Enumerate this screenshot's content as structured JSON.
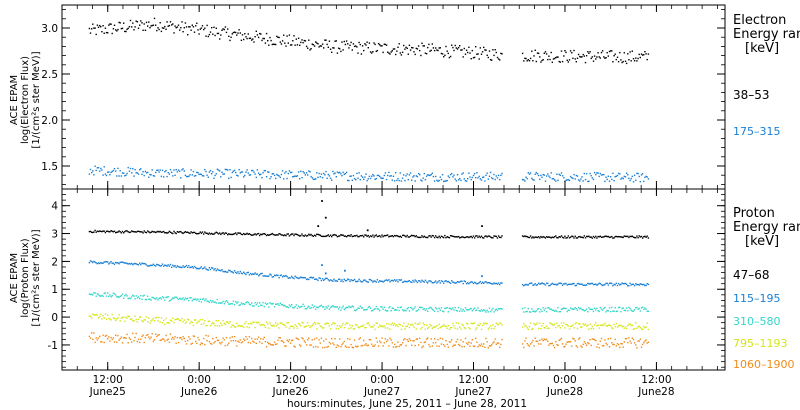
{
  "colors": {
    "black": "#000000",
    "blue": "#1a7fd4",
    "cyan": "#33d6c8",
    "yellow": "#d4e61a",
    "orange": "#f08c1a",
    "frame": "#000000"
  },
  "chart_data": [
    {
      "type": "scatter",
      "panel": "electron",
      "ylabel": [
        "ACE EPAM",
        "log(Electron Flux)",
        "[1/(cm²s ster MeV)]"
      ],
      "ylim": [
        1.25,
        3.25
      ],
      "yticks": [
        1.5,
        2.0,
        2.5,
        3.0
      ],
      "ytick_labels": [
        "1.5",
        "2.0",
        "2.5",
        "3.0"
      ],
      "legend": {
        "title": [
          "Electron",
          "Energy ranges",
          "[keV]"
        ],
        "entries": [
          {
            "label": "38–53",
            "color": "black"
          },
          {
            "label": "175–315",
            "color": "blue"
          }
        ]
      },
      "series": [
        {
          "name": "38–53",
          "color": "black",
          "t": [
            4,
            12,
            24,
            36,
            48,
            57,
            60,
            66,
            76
          ],
          "v": [
            2.98,
            3.05,
            2.92,
            2.8,
            2.77,
            2.72,
            2.71,
            2.7,
            2.69
          ],
          "spread": 0.07
        },
        {
          "name": "175–315",
          "color": "blue",
          "t": [
            4,
            12,
            24,
            36,
            48,
            57,
            60,
            66,
            76
          ],
          "v": [
            1.46,
            1.43,
            1.42,
            1.4,
            1.39,
            1.39,
            1.39,
            1.39,
            1.38
          ],
          "spread": 0.05
        }
      ]
    },
    {
      "type": "scatter",
      "panel": "proton",
      "ylabel": [
        "ACE EPAM",
        "log(Proton Flux)",
        "[1/(cm²s ster MeV)]"
      ],
      "ylim": [
        -1.9,
        4.6
      ],
      "yticks": [
        -1,
        0,
        1,
        2,
        3,
        4
      ],
      "ytick_labels": [
        "-1",
        "0",
        "1",
        "2",
        "3",
        "4"
      ],
      "legend": {
        "title": [
          "Proton",
          "Energy ranges",
          "[keV]"
        ],
        "entries": [
          {
            "label": "47–68",
            "color": "black"
          },
          {
            "label": "115–195",
            "color": "blue"
          },
          {
            "label": "310–580",
            "color": "cyan"
          },
          {
            "label": "795–1193",
            "color": "yellow"
          },
          {
            "label": "1060–1900",
            "color": "orange"
          }
        ]
      },
      "series": [
        {
          "name": "47–68",
          "color": "black",
          "t": [
            4,
            12,
            18,
            24,
            36,
            48,
            57,
            60,
            76
          ],
          "v": [
            3.1,
            3.08,
            3.05,
            3.0,
            2.95,
            2.92,
            2.9,
            2.9,
            2.9
          ],
          "spread": 0.04,
          "spikes": [
            [
              34,
              4.2
            ],
            [
              34.5,
              3.6
            ],
            [
              33.5,
              3.3
            ],
            [
              40,
              3.15
            ],
            [
              55,
              3.3
            ]
          ]
        },
        {
          "name": "115–195",
          "color": "blue",
          "t": [
            4,
            12,
            18,
            24,
            30,
            36,
            48,
            57,
            60,
            76
          ],
          "v": [
            2.0,
            1.9,
            1.8,
            1.6,
            1.45,
            1.35,
            1.3,
            1.25,
            1.2,
            1.2
          ],
          "spread": 0.05,
          "spikes": [
            [
              34,
              1.9
            ],
            [
              34.5,
              1.6
            ],
            [
              37,
              1.7
            ],
            [
              55,
              1.5
            ]
          ]
        },
        {
          "name": "310–580",
          "color": "cyan",
          "t": [
            4,
            12,
            18,
            24,
            36,
            48,
            57,
            60,
            76
          ],
          "v": [
            0.85,
            0.7,
            0.65,
            0.5,
            0.35,
            0.3,
            0.28,
            0.28,
            0.3
          ],
          "spread": 0.08
        },
        {
          "name": "795–1193",
          "color": "yellow",
          "t": [
            4,
            12,
            24,
            36,
            48,
            57,
            60,
            76
          ],
          "v": [
            0.05,
            -0.1,
            -0.25,
            -0.3,
            -0.3,
            -0.3,
            -0.3,
            -0.3
          ],
          "spread": 0.12
        },
        {
          "name": "1060–1900",
          "color": "orange",
          "t": [
            4,
            12,
            24,
            36,
            48,
            57,
            60,
            76
          ],
          "v": [
            -0.7,
            -0.75,
            -0.85,
            -0.9,
            -0.9,
            -0.9,
            -0.9,
            -0.9
          ],
          "spread": 0.18
        }
      ]
    }
  ],
  "x_axis": {
    "xlim_hours": [
      0,
      87
    ],
    "data_start": 3.5,
    "data_end": 77,
    "gap": [
      57.7,
      60.2
    ],
    "major_ticks": [
      {
        "t": 6,
        "time": "12:00",
        "date": "June25"
      },
      {
        "t": 18,
        "time": "0:00",
        "date": "June26"
      },
      {
        "t": 30,
        "time": "12:00",
        "date": "June26"
      },
      {
        "t": 42,
        "time": "0:00",
        "date": "June27"
      },
      {
        "t": 54,
        "time": "12:00",
        "date": "June27"
      },
      {
        "t": 66,
        "time": "0:00",
        "date": "June28"
      },
      {
        "t": 78,
        "time": "12:00",
        "date": "June28"
      }
    ],
    "minor_tick_step": 2,
    "title": "hours:minutes, June 25, 2011 – June 28, 2011"
  }
}
